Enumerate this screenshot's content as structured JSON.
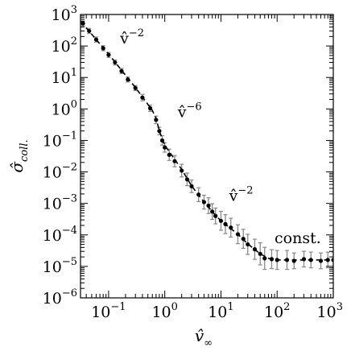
{
  "chart_data": {
    "type": "scatter",
    "xscale": "log",
    "yscale": "log",
    "xlim": [
      0.0316,
      1000
    ],
    "ylim": [
      1e-06,
      1000
    ],
    "xlabel": {
      "base": "v̂",
      "sub": "∞"
    },
    "ylabel": {
      "base": "σ̂",
      "sub": "coll."
    },
    "x_tick_values": [
      0.1,
      1,
      10,
      100,
      1000
    ],
    "x_tick_labels": [
      {
        "base": "10",
        "exp": "−1"
      },
      {
        "base": "10",
        "exp": "0"
      },
      {
        "base": "10",
        "exp": "1"
      },
      {
        "base": "10",
        "exp": "2"
      },
      {
        "base": "10",
        "exp": "3"
      }
    ],
    "y_tick_values": [
      1e-06,
      1e-05,
      0.0001,
      0.001,
      0.01,
      0.1,
      1,
      10,
      100,
      1000
    ],
    "y_tick_labels": [
      {
        "base": "10",
        "exp": "−6"
      },
      {
        "base": "10",
        "exp": "−5"
      },
      {
        "base": "10",
        "exp": "−4"
      },
      {
        "base": "10",
        "exp": "−3"
      },
      {
        "base": "10",
        "exp": "−2"
      },
      {
        "base": "10",
        "exp": "−1"
      },
      {
        "base": "10",
        "exp": "0"
      },
      {
        "base": "10",
        "exp": "1"
      },
      {
        "base": "10",
        "exp": "2"
      },
      {
        "base": "10",
        "exp": "3"
      }
    ],
    "annotations": [
      {
        "base": "v̂",
        "exp": "−2",
        "x": 0.16,
        "y": 120
      },
      {
        "base": "v̂",
        "exp": "−6",
        "x": 1.7,
        "y": 0.55
      },
      {
        "base": "v̂",
        "exp": "−2",
        "x": 14,
        "y": 0.0012
      },
      {
        "base": "const.",
        "exp": "",
        "x": 90,
        "y": 5.5e-05
      }
    ],
    "grid": false,
    "colors": {
      "points": "#000000",
      "errorbars": "#888888",
      "fit": "#000000",
      "axes": "#000000"
    },
    "series": [
      {
        "values": [
          [
            0.035,
            520
          ],
          [
            0.045,
            300
          ],
          [
            0.06,
            160
          ],
          [
            0.08,
            85
          ],
          [
            0.1,
            52
          ],
          [
            0.13,
            30
          ],
          [
            0.17,
            16
          ],
          [
            0.22,
            8.6
          ],
          [
            0.3,
            4.6
          ],
          [
            0.4,
            2.3
          ],
          [
            0.55,
            1.05
          ],
          [
            0.7,
            0.45
          ],
          [
            0.8,
            0.2
          ],
          [
            0.9,
            0.1
          ],
          [
            1.0,
            0.06
          ],
          [
            1.2,
            0.035
          ],
          [
            1.5,
            0.022
          ],
          [
            2.0,
            0.011
          ],
          [
            2.5,
            0.0058
          ],
          [
            3.0,
            0.0035
          ],
          [
            4.0,
            0.0019
          ],
          [
            5.0,
            0.0011
          ],
          [
            6.0,
            0.00085
          ],
          [
            7.0,
            0.00055
          ],
          [
            8.0,
            0.0004
          ],
          [
            10.0,
            0.00028
          ],
          [
            12.0,
            0.00022
          ],
          [
            15.0,
            0.00017
          ],
          [
            20.0,
            0.000105
          ],
          [
            25.0,
            7.5e-05
          ],
          [
            30.0,
            5e-05
          ],
          [
            40.0,
            3.5e-05
          ],
          [
            50.0,
            2.5e-05
          ],
          [
            60.0,
            1.8e-05
          ],
          [
            80.0,
            1.7e-05
          ],
          [
            100.0,
            1.6e-05
          ],
          [
            150.0,
            1.6e-05
          ],
          [
            200.0,
            1.5e-05
          ],
          [
            300.0,
            1.7e-05
          ],
          [
            400.0,
            1.6e-05
          ],
          [
            600.0,
            1.5e-05
          ],
          [
            800.0,
            1.6e-05
          ],
          [
            1000.0,
            1.6e-05
          ]
        ],
        "errors": [
          0.08,
          0.08,
          0.08,
          0.08,
          0.08,
          0.08,
          0.08,
          0.08,
          0.08,
          0.1,
          0.1,
          0.12,
          0.12,
          0.15,
          0.15,
          0.18,
          0.18,
          0.2,
          0.2,
          0.2,
          0.22,
          0.22,
          0.25,
          0.25,
          0.25,
          0.3,
          0.3,
          0.3,
          0.3,
          0.3,
          0.32,
          0.32,
          0.35,
          0.35,
          0.3,
          0.3,
          0.3,
          0.25,
          0.25,
          0.25,
          0.25,
          0.25,
          0.25
        ]
      }
    ],
    "fit": {
      "type": "line",
      "values": [
        [
          0.032,
          600
        ],
        [
          0.1,
          55
        ],
        [
          0.3,
          4.8
        ],
        [
          0.5,
          1.4
        ],
        [
          0.6,
          0.9
        ],
        [
          0.7,
          0.5
        ],
        [
          0.8,
          0.2
        ],
        [
          1.0,
          0.07
        ],
        [
          2.0,
          0.012
        ],
        [
          3.0,
          0.0036
        ],
        [
          5.0,
          0.0011
        ],
        [
          8.0,
          0.00042
        ],
        [
          10.0,
          0.00028
        ],
        [
          20.0,
          0.000105
        ],
        [
          30.0,
          5.2e-05
        ],
        [
          50.0,
          2.5e-05
        ],
        [
          70.0,
          1.8e-05
        ],
        [
          100.0,
          1.6e-05
        ],
        [
          1000.0,
          1.6e-05
        ]
      ]
    }
  }
}
